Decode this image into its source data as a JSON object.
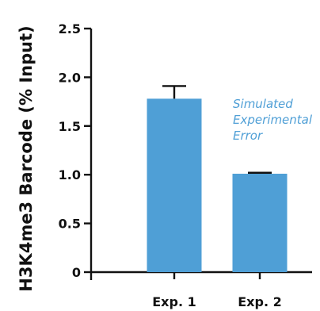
{
  "chart_data": {
    "type": "bar",
    "title": "",
    "xlabel": "",
    "ylabel": "H3K4me3 Barcode (% Input)",
    "categories": [
      "Exp. 1",
      "Exp. 2"
    ],
    "values": [
      1.78,
      1.01
    ],
    "errors": [
      0.13,
      0.01
    ],
    "ylim": [
      0,
      2.5
    ],
    "yticks": [
      0,
      0.5,
      1.0,
      1.5,
      2.0,
      2.5
    ],
    "ytick_labels": [
      "0",
      "0.5",
      "1.0",
      "1.5",
      "2.0",
      "2.5"
    ],
    "annotation": [
      "Simulated",
      "Experimental",
      "Error"
    ],
    "grid": false,
    "colors": {
      "bar": "#4f9fd6",
      "axis": "#111111",
      "annotation": "#4f9fd6"
    }
  }
}
